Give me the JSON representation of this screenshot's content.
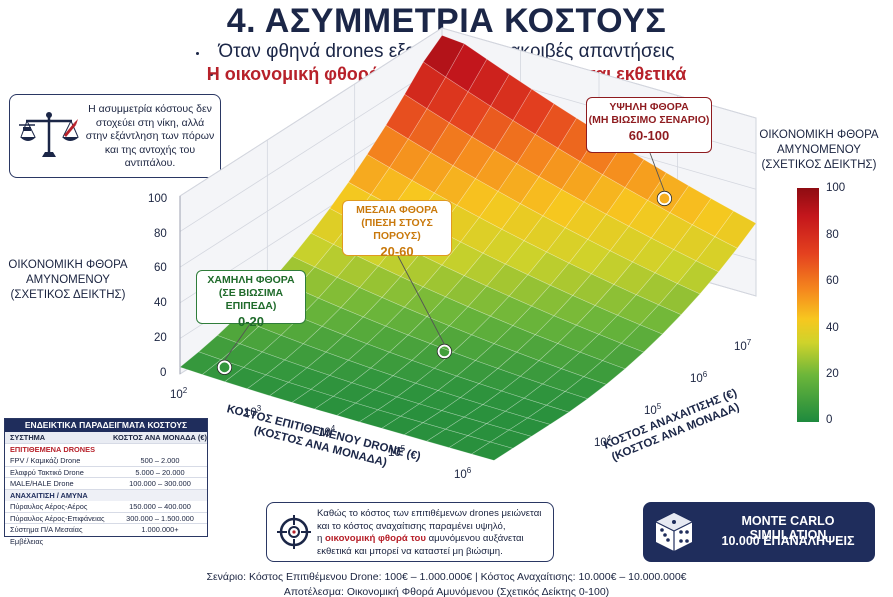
{
  "header": {
    "title": "4. ΑΣΥΜΜΕΤΡΙΑ ΚΟΣΤΟΥΣ",
    "subtitle_1": "Όταν φθηνά drones εξαναγκάζουν ακριβές απαντήσεις",
    "subtitle_2": "Η οικονομική φθορά του αμυνόμενου αυξάνεται εκθετικά"
  },
  "info_box": {
    "icon": "scale-drone-missile-icon",
    "text": "Η ασυμμετρία κόστους δεν στοχεύει στη νίκη, αλλά στην εξάντληση των πόρων και της αντοχής του αντιπάλου."
  },
  "chart_data": {
    "type": "surface3d",
    "title": "",
    "zlabel": "ΟΙΚΟΝΟΜΙΚΗ ΦΘΟΡΑ ΑΜΥΝΟΜΕΝΟΥ (ΣΧΕΤΙΚΟΣ ΔΕΙΚΤΗΣ)",
    "xlabel": "ΚΟΣΤΟΣ ΕΠΙΤΙΘΕΜΕΝΟΥ DRONE (€) (ΚΟΣΤΟΣ ΑΝΑ ΜΟΝΑΔΑ)",
    "ylabel": "ΚΟΣΤΟΣ ΑΝΑΧΑΙΤΙΣΗΣ (€) (ΚΟΣΤΟΣ ΑΝΑ ΜΟΝΑΔΑ)",
    "x_scale": "log",
    "y_scale": "log",
    "x_ticks": [
      "10^2",
      "10^3",
      "10^4",
      "10^5",
      "10^6"
    ],
    "y_ticks": [
      "10^4",
      "10^5",
      "10^6",
      "10^7"
    ],
    "z_ticks": [
      0,
      20,
      40,
      60,
      80,
      100
    ],
    "zlim": [
      0,
      100
    ],
    "grid": true,
    "colorbar": {
      "title": "ΟΙΚΟΝΟΜΙΚΗ ΦΘΟΡΑ ΑΜΥΝΟΜΕΝΟΥ (ΣΧΕΤΙΚΟΣ ΔΕΙΚΤΗΣ)",
      "ticks": [
        100,
        80,
        60,
        40,
        20,
        0
      ]
    },
    "annotations": [
      {
        "id": "low",
        "title": "ΧΑΜΗΛΗ ΦΘΟΡΑ",
        "subtitle": "(ΣΕ ΒΙΩΣΙΜΑ ΕΠΙΠΕΔΑ)",
        "range": "0-20",
        "color": "#2f7d3a"
      },
      {
        "id": "mid",
        "title": "ΜΕΣΑΙΑ ΦΘΟΡΑ",
        "subtitle": "(ΠΙΕΣΗ ΣΤΟΥΣ ΠΟΡΟΥΣ)",
        "range": "20-60",
        "color": "#e09a20"
      },
      {
        "id": "high",
        "title": "ΥΨΗΛΗ ΦΘΟΡΑ",
        "subtitle": "(ΜΗ ΒΙΩΣΙΜΟ ΣΕΝΑΡΙΟ)",
        "range": "60-100",
        "color": "#8e1b1f"
      }
    ],
    "colors": [
      "#1e8a3e",
      "#6cb63a",
      "#cfd32b",
      "#f7c71f",
      "#f58a1e",
      "#e4411f",
      "#c4161c",
      "#8e0c12"
    ]
  },
  "examples_table": {
    "title": "ΕΝΔΕΙΚΤΙΚΑ ΠΑΡΑΔΕΙΓΜΑΤΑ ΚΟΣΤΟΥΣ",
    "col_system": "ΣΥΣΤΗΜΑ",
    "col_cost": "ΚΟΣΤΟΣ ΑΝΑ ΜΟΝΑΔΑ (€)",
    "section_attack": "ΕΠΙΤΙΘΕΜΕΝΑ DRONES",
    "attack_rows": [
      {
        "name": "FPV / Καμικάζι Drone",
        "cost": "500 – 2.000"
      },
      {
        "name": "Ελαφρύ Τακτικό Drone",
        "cost": "5.000 – 20.000"
      },
      {
        "name": "MALE/HALE Drone",
        "cost": "100.000 – 300.000"
      }
    ],
    "section_defense": "ΑΝΑΧΑΙΤΙΣΗ / ΑΜΥΝΑ",
    "defense_rows": [
      {
        "name": "Πύραυλος Αέρος-Αέρος",
        "cost": "150.000 – 400.000"
      },
      {
        "name": "Πύραυλος Αέρος-Επιφάνειας",
        "cost": "300.000 – 1.500.000"
      },
      {
        "name": "Σύστημα Π/Α Μεσαίας Εμβέλειας",
        "cost": "1.000.000+"
      }
    ]
  },
  "note_box": {
    "icon": "crosshair-target-icon",
    "line1": "Καθώς το κόστος των επιτιθέμενων drones μειώνεται",
    "line2": "και το κόστος αναχαίτισης παραμένει υψηλό,",
    "line3_pre": "η ",
    "line3_hl": "οικονομική φθορά του",
    "line3_post": " αμυνόμενου αυξάνεται",
    "line4": "εκθετικά και μπορεί να καταστεί μη βιώσιμη."
  },
  "monte_carlo": {
    "icon": "dice-icon",
    "line1": "MONTE CARLO SIMULATION",
    "line2": "10.000 ΕΠΑΝΑΛΗΨΕΙΣ"
  },
  "footer": {
    "line1": "Σενάριο: Κόστος Επιτιθέμενου Drone: 100€ – 1.000.000€   |   Κόστος Αναχαίτισης: 10.000€ – 10.000.000€",
    "line2": "Αποτέλεσμα: Οικονομική Φθορά Αμυνόμενου (Σχετικός Δείκτης 0-100)"
  }
}
